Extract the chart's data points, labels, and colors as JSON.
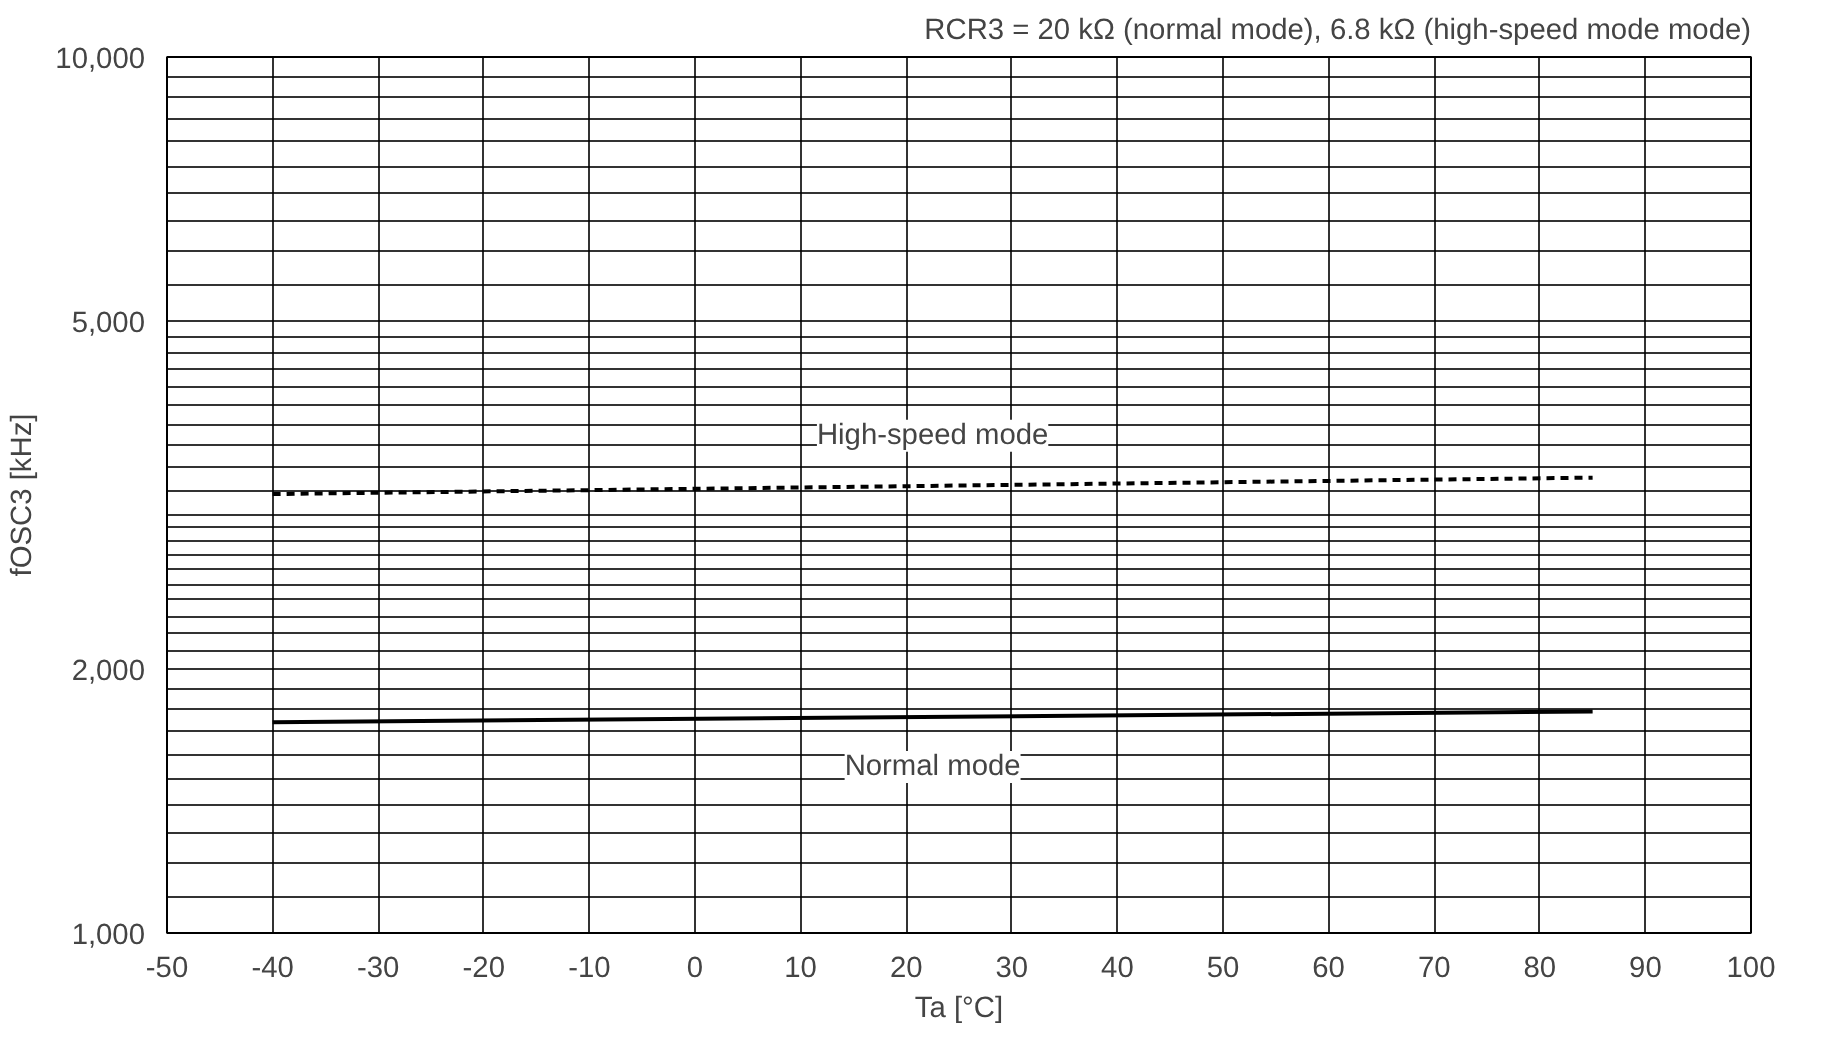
{
  "chart_data": {
    "type": "line",
    "subtitle": "RCR3 = 20 kΩ (normal mode), 6.8 kΩ (high-speed mode mode)",
    "xlabel": "Ta [°C]",
    "ylabel": "fOSC3 [kHz]",
    "log": "y",
    "grid": true,
    "x": [
      -40,
      85
    ],
    "xlim": [
      -50,
      100
    ],
    "xticks": [
      -50,
      -40,
      -30,
      -20,
      -10,
      0,
      10,
      20,
      30,
      40,
      50,
      60,
      70,
      80,
      90,
      100
    ],
    "ylim": [
      1000,
      10000
    ],
    "yticks": [
      {
        "value": 1000,
        "label": "1,000"
      },
      {
        "value": 1100,
        "label": null
      },
      {
        "value": 1200,
        "label": null
      },
      {
        "value": 1300,
        "label": null
      },
      {
        "value": 1400,
        "label": null
      },
      {
        "value": 1500,
        "label": null
      },
      {
        "value": 1600,
        "label": null
      },
      {
        "value": 1700,
        "label": null
      },
      {
        "value": 1800,
        "label": null
      },
      {
        "value": 1900,
        "label": null
      },
      {
        "value": 2000,
        "label": "2,000"
      },
      {
        "value": 2100,
        "label": null
      },
      {
        "value": 2200,
        "label": null
      },
      {
        "value": 2300,
        "label": null
      },
      {
        "value": 2400,
        "label": null
      },
      {
        "value": 2500,
        "label": null
      },
      {
        "value": 2600,
        "label": null
      },
      {
        "value": 2700,
        "label": null
      },
      {
        "value": 2800,
        "label": null
      },
      {
        "value": 2900,
        "label": null
      },
      {
        "value": 3000,
        "label": null
      },
      {
        "value": 3200,
        "label": null
      },
      {
        "value": 3400,
        "label": null
      },
      {
        "value": 3600,
        "label": null
      },
      {
        "value": 3800,
        "label": null
      },
      {
        "value": 4000,
        "label": null
      },
      {
        "value": 4200,
        "label": null
      },
      {
        "value": 4400,
        "label": null
      },
      {
        "value": 4600,
        "label": null
      },
      {
        "value": 4800,
        "label": null
      },
      {
        "value": 5000,
        "label": "5,000"
      },
      {
        "value": 5500,
        "label": null
      },
      {
        "value": 6000,
        "label": null
      },
      {
        "value": 6500,
        "label": null
      },
      {
        "value": 7000,
        "label": null
      },
      {
        "value": 7500,
        "label": null
      },
      {
        "value": 8000,
        "label": null
      },
      {
        "value": 8500,
        "label": null
      },
      {
        "value": 9000,
        "label": null
      },
      {
        "value": 9500,
        "label": null
      },
      {
        "value": 10000,
        "label": "10,000"
      }
    ],
    "series": [
      {
        "name": "High-speed mode",
        "color": "#000000",
        "line_style": "dashed",
        "values": [
          3170,
          3310
        ]
      },
      {
        "name": "Normal mode",
        "color": "#000000",
        "line_style": "solid",
        "values": [
          1740,
          1790
        ]
      }
    ]
  }
}
